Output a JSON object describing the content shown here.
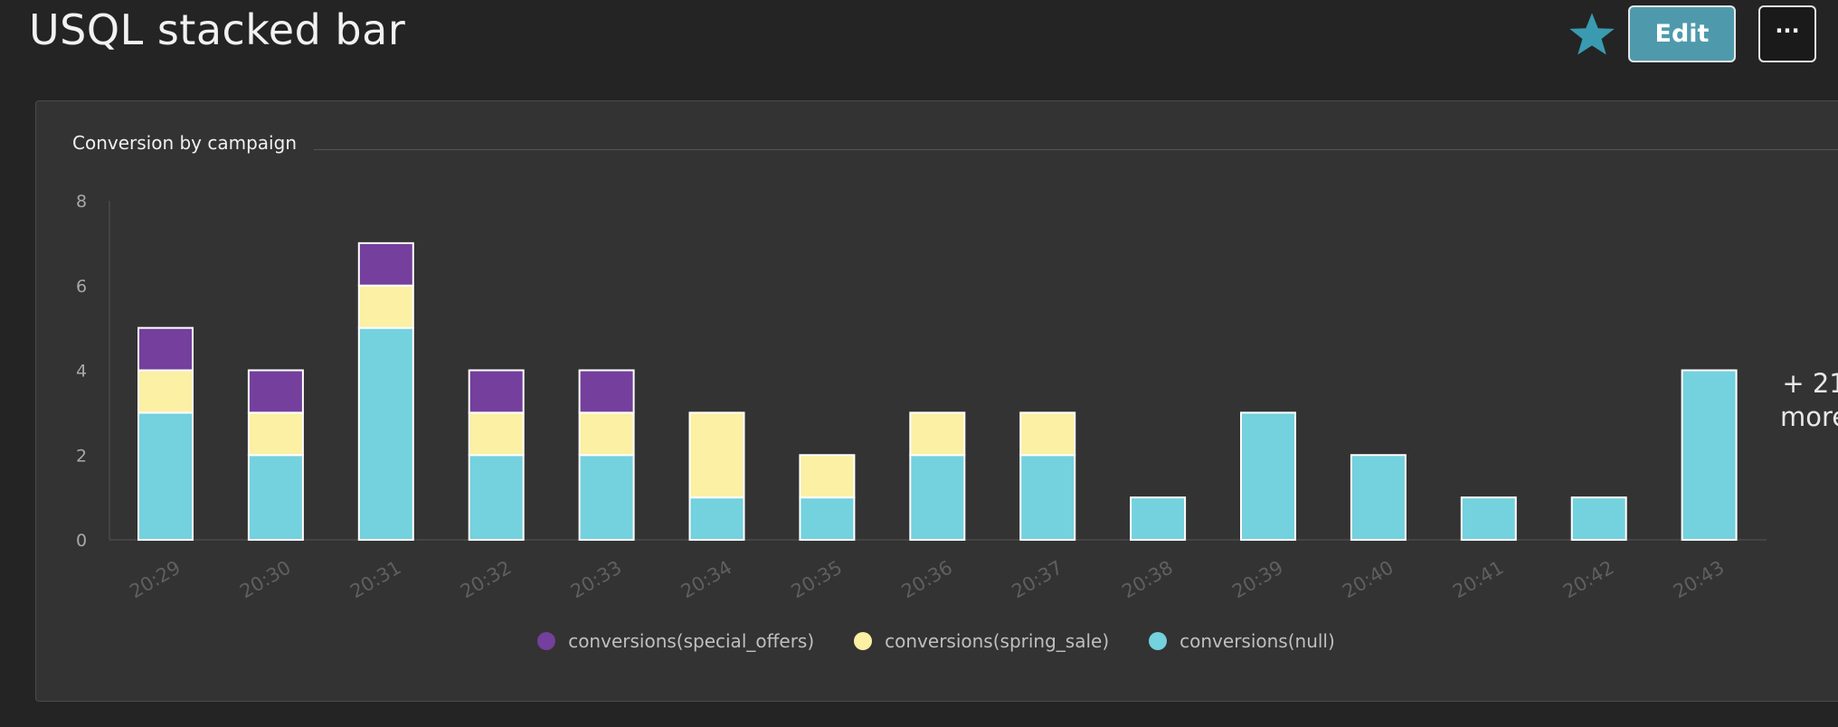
{
  "header": {
    "title": "USQL stacked bar",
    "edit_label": "Edit",
    "more_label": "···",
    "favorite_icon": "star-icon",
    "accent_color": "#3a9bb0"
  },
  "tile": {
    "title": "Conversion by campaign",
    "more_series_line1": "+ 21",
    "more_series_line2": "more"
  },
  "chart_data": {
    "type": "bar",
    "stacked": true,
    "title": "Conversion by campaign",
    "xlabel": "",
    "ylabel": "",
    "ylim": [
      0,
      8
    ],
    "yticks": [
      "0",
      "2",
      "4",
      "6",
      "8"
    ],
    "categories": [
      "20:29",
      "20:30",
      "20:31",
      "20:32",
      "20:33",
      "20:34",
      "20:35",
      "20:36",
      "20:37",
      "20:38",
      "20:39",
      "20:40",
      "20:41",
      "20:42",
      "20:43"
    ],
    "series": [
      {
        "name": "conversions(null)",
        "color": "#74d1de",
        "values": [
          3,
          2,
          5,
          2,
          2,
          1,
          1,
          2,
          2,
          1,
          3,
          2,
          1,
          1,
          4
        ]
      },
      {
        "name": "conversions(spring_sale)",
        "color": "#fbf0a3",
        "values": [
          1,
          1,
          1,
          1,
          1,
          2,
          1,
          1,
          1,
          0,
          0,
          0,
          0,
          0,
          0
        ]
      },
      {
        "name": "conversions(special_offers)",
        "color": "#743f9d",
        "values": [
          1,
          1,
          1,
          1,
          1,
          0,
          0,
          0,
          0,
          0,
          0,
          0,
          0,
          0,
          0
        ]
      }
    ],
    "legend_order": [
      "conversions(special_offers)",
      "conversions(spring_sale)",
      "conversions(null)"
    ],
    "legend_position": "bottom",
    "grid": false
  }
}
